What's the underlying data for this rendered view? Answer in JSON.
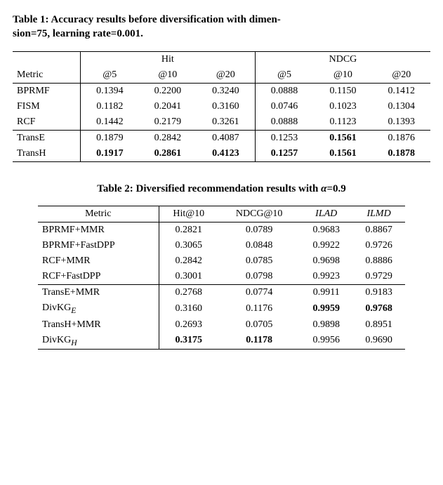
{
  "table1": {
    "caption_a": "Table 1: Accuracy results before diversification with dimen-",
    "caption_b": "sion=75, learning rate=0.001.",
    "metric_label": "Metric",
    "group_hit": "Hit",
    "group_ndcg": "NDCG",
    "at5": "@5",
    "at10": "@10",
    "at20": "@20",
    "rows_a": [
      {
        "name": "BPRMF",
        "h5": "0.1394",
        "h10": "0.2200",
        "h20": "0.3240",
        "n5": "0.0888",
        "n10": "0.1150",
        "n20": "0.1412"
      },
      {
        "name": "FISM",
        "h5": "0.1182",
        "h10": "0.2041",
        "h20": "0.3160",
        "n5": "0.0746",
        "n10": "0.1023",
        "n20": "0.1304"
      },
      {
        "name": "RCF",
        "h5": "0.1442",
        "h10": "0.2179",
        "h20": "0.3261",
        "n5": "0.0888",
        "n10": "0.1123",
        "n20": "0.1393"
      }
    ],
    "rows_b": [
      {
        "name": "TransE",
        "h5": "0.1879",
        "h10": "0.2842",
        "h20": "0.4087",
        "n5": "0.1253",
        "n10": "0.1561",
        "n20": "0.1876",
        "bold": {
          "n10": true
        }
      },
      {
        "name": "TransH",
        "h5": "0.1917",
        "h10": "0.2861",
        "h20": "0.4123",
        "n5": "0.1257",
        "n10": "0.1561",
        "n20": "0.1878",
        "bold": {
          "h5": true,
          "h10": true,
          "h20": true,
          "n5": true,
          "n10": true,
          "n20": true
        }
      }
    ]
  },
  "table2": {
    "caption_prefix": "Table 2: Diversified recommendation results with ",
    "alpha": "α",
    "caption_suffix": "=0.9",
    "metric_label": "Metric",
    "col_hit10": "Hit@10",
    "col_ndcg10": "NDCG@10",
    "col_ilad": "ILAD",
    "col_ilmd": "ILMD",
    "rows_a": [
      {
        "name": "BPRMF+MMR",
        "hit": "0.2821",
        "ndcg": "0.0789",
        "ilad": "0.9683",
        "ilmd": "0.8867"
      },
      {
        "name": "BPRMF+FastDPP",
        "hit": "0.3065",
        "ndcg": "0.0848",
        "ilad": "0.9922",
        "ilmd": "0.9726"
      },
      {
        "name": "RCF+MMR",
        "hit": "0.2842",
        "ndcg": "0.0785",
        "ilad": "0.9698",
        "ilmd": "0.8886"
      },
      {
        "name": "RCF+FastDPP",
        "hit": "0.3001",
        "ndcg": "0.0798",
        "ilad": "0.9923",
        "ilmd": "0.9729"
      }
    ],
    "rows_b": [
      {
        "name": "TransE+MMR",
        "hit": "0.2768",
        "ndcg": "0.0774",
        "ilad": "0.9911",
        "ilmd": "0.9183"
      },
      {
        "name_html": "DivKG<sub><i>E</i></sub>",
        "hit": "0.3160",
        "ndcg": "0.1176",
        "ilad": "0.9959",
        "ilmd": "0.9768",
        "bold": {
          "ilad": true,
          "ilmd": true
        }
      },
      {
        "name": "TransH+MMR",
        "hit": "0.2693",
        "ndcg": "0.0705",
        "ilad": "0.9898",
        "ilmd": "0.8951"
      },
      {
        "name_html": "DivKG<sub><i>H</i></sub>",
        "hit": "0.3175",
        "ndcg": "0.1178",
        "ilad": "0.9956",
        "ilmd": "0.9690",
        "bold": {
          "hit": true,
          "ndcg": true
        }
      }
    ]
  }
}
